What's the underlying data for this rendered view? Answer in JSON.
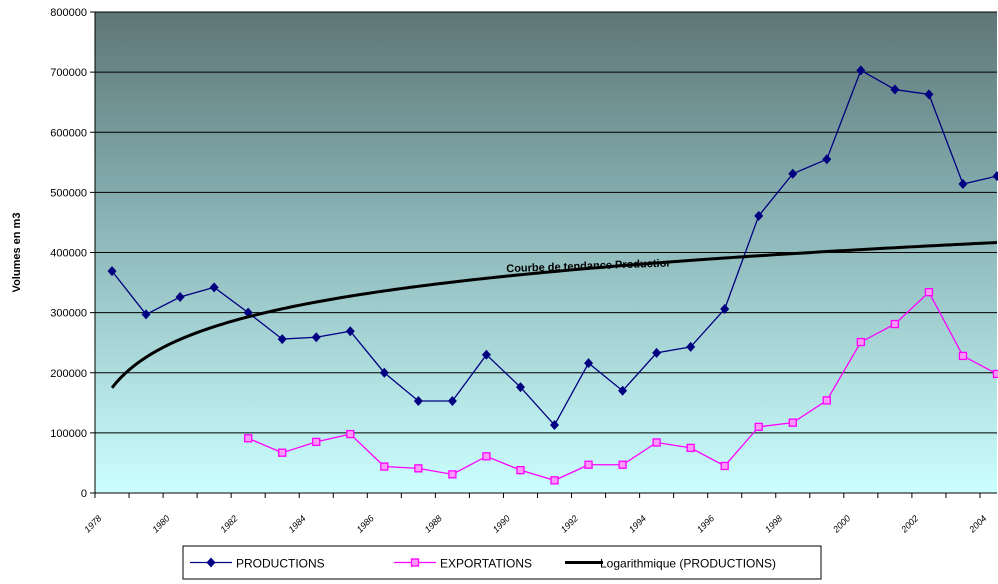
{
  "chart_data": {
    "type": "line",
    "ylabel": "Volumes en m3",
    "ylim": [
      0,
      800000
    ],
    "yticks": [
      0,
      100000,
      200000,
      300000,
      400000,
      500000,
      600000,
      700000,
      800000
    ],
    "ytick_labels": [
      "0",
      "100000",
      "200000",
      "300000",
      "400000",
      "500000",
      "600000",
      "700000",
      "800000"
    ],
    "xlim": [
      1978,
      2004.5
    ],
    "xtick_labels": [
      "1978",
      "1980",
      "1982",
      "1984",
      "1986",
      "1988",
      "1990",
      "1992",
      "1994",
      "1996",
      "1998",
      "2000",
      "2002",
      "2004"
    ],
    "grid": true,
    "legend_position": "bottom",
    "series": [
      {
        "name": "PRODUCTIONS",
        "color": "#000080",
        "marker": "diamond",
        "x": [
          1978.5,
          1979.5,
          1980.5,
          1981.5,
          1982.5,
          1983.5,
          1984.5,
          1985.5,
          1986.5,
          1987.5,
          1988.5,
          1989.5,
          1990.5,
          1991.5,
          1992.5,
          1993.5,
          1994.5,
          1995.5,
          1996.5,
          1997.5,
          1998.5,
          1999.5,
          2000.5,
          2001.5,
          2002.5,
          2003.5,
          2004.5
        ],
        "values": [
          369000,
          297000,
          326000,
          342000,
          300000,
          256000,
          259000,
          269000,
          200000,
          153000,
          153000,
          230000,
          176000,
          113000,
          216000,
          170000,
          233000,
          243000,
          306000,
          461000,
          531000,
          555000,
          703000,
          671000,
          663000,
          514000,
          527000
        ]
      },
      {
        "name": "EXPORTATIONS",
        "color": "#ff00ff",
        "marker": "square",
        "x": [
          1982.5,
          1983.5,
          1984.5,
          1985.5,
          1986.5,
          1987.5,
          1988.5,
          1989.5,
          1990.5,
          1991.5,
          1992.5,
          1993.5,
          1994.5,
          1995.5,
          1996.5,
          1997.5,
          1998.5,
          1999.5,
          2000.5,
          2001.5,
          2002.5,
          2003.5,
          2004.5
        ],
        "values": [
          91000,
          67000,
          85000,
          98000,
          44000,
          41000,
          31000,
          61000,
          38000,
          21000,
          47000,
          47000,
          84000,
          75000,
          45000,
          110000,
          117000,
          154000,
          251000,
          281000,
          334000,
          228000,
          198000
        ]
      },
      {
        "name": "Logarithmique (PRODUCTIONS)",
        "color": "#000000",
        "marker": "none",
        "trend": "log",
        "trend_params": {
          "a": 175000,
          "b": 73300
        },
        "x_start": 1978.5,
        "x_end": 2004.5
      }
    ],
    "annotations": [
      {
        "text": "Courbe de tendance  Productior",
        "x": 1992.5,
        "y": 372000
      }
    ]
  }
}
